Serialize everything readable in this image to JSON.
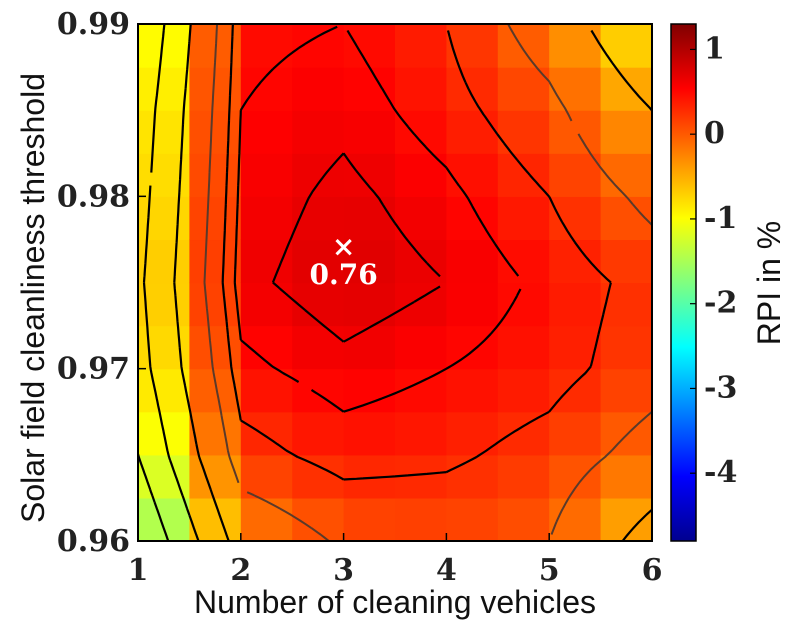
{
  "chart_data": {
    "type": "heatmap",
    "xlabel": "Number of cleaning vehicles",
    "ylabel": "Solar field cleanliness threshold",
    "colorbar_label": "RPI in %",
    "x_ticks": [
      "1",
      "2",
      "3",
      "4",
      "5",
      "6"
    ],
    "y_ticks": [
      "0.96",
      "0.97",
      "0.98",
      "0.99"
    ],
    "colorbar_ticks": [
      "1",
      "0",
      "-1",
      "-2",
      "-3",
      "-4"
    ],
    "xlim": [
      1,
      6
    ],
    "ylim": [
      0.96,
      0.99
    ],
    "clim": [
      -4.8,
      1.3
    ],
    "x": [
      1,
      2,
      3,
      4,
      5,
      6
    ],
    "y": [
      0.96,
      0.965,
      0.97,
      0.975,
      0.98,
      0.985,
      0.99
    ],
    "z": [
      [
        -2.0,
        -0.3,
        0.05,
        0.1,
        0.0,
        -0.7
      ],
      [
        -1.5,
        0.2,
        0.4,
        0.35,
        0.2,
        -0.15
      ],
      [
        -1.2,
        0.45,
        0.6,
        0.5,
        0.4,
        0.15
      ],
      [
        -1.1,
        0.6,
        0.76,
        0.65,
        0.45,
        0.2
      ],
      [
        -1.2,
        0.55,
        0.7,
        0.55,
        0.3,
        -0.1
      ],
      [
        -1.3,
        0.5,
        0.6,
        0.4,
        0.1,
        -0.5
      ],
      [
        -1.5,
        0.45,
        0.5,
        0.3,
        -0.2,
        -1.0
      ]
    ],
    "annotation": {
      "text": "0.76",
      "marker": "×",
      "x": 3,
      "y": 0.977
    },
    "colormap": "jet",
    "contour_color": "#000000"
  }
}
